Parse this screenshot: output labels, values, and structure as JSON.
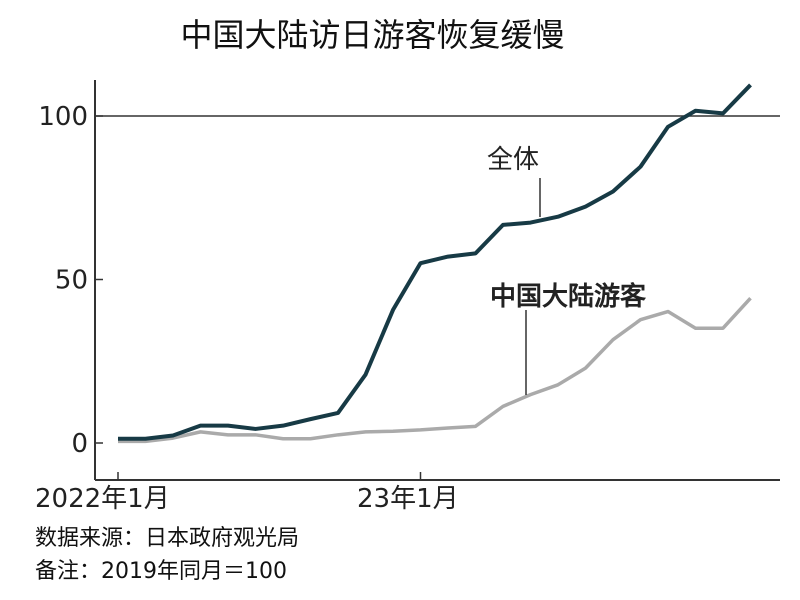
{
  "chart_data": {
    "type": "line",
    "title": "中国大陆访日游客恢复缓慢",
    "x": [
      0,
      1,
      2,
      3,
      4,
      5,
      6,
      7,
      8,
      9,
      10,
      11,
      12,
      13,
      14,
      15,
      16,
      17,
      18,
      19,
      20,
      21,
      22,
      23
    ],
    "x_ticks": [
      {
        "index": 0,
        "label": "2022年1月"
      },
      {
        "index": 11,
        "label": "23年1月"
      }
    ],
    "y_ticks": [
      0,
      50,
      100
    ],
    "ylim": [
      -10,
      112
    ],
    "reference_line": 100,
    "grid": false,
    "series": [
      {
        "name": "全体",
        "color": "#173a45",
        "values": [
          1.3,
          1.3,
          2.3,
          5.3,
          5.3,
          4.3,
          5.3,
          7.3,
          9.2,
          20.9,
          40.7,
          55,
          57,
          58,
          66.7,
          67.4,
          69.2,
          72.3,
          76.9,
          84.5,
          96.7,
          101.6,
          100.8,
          109.5
        ]
      },
      {
        "name": "中国大陆游客",
        "color": "#aaaaaa",
        "values": [
          0.5,
          0.5,
          1.5,
          3.4,
          2.5,
          2.5,
          1.3,
          1.3,
          2.5,
          3.4,
          3.6,
          4,
          4.6,
          5.1,
          11.2,
          14.8,
          17.8,
          22.9,
          31.6,
          37.7,
          40.2,
          35.1,
          35.1,
          44.3
        ]
      }
    ]
  },
  "notes": {
    "source": "数据来源：日本政府观光局",
    "remark": "备注：2019年同月＝100"
  }
}
